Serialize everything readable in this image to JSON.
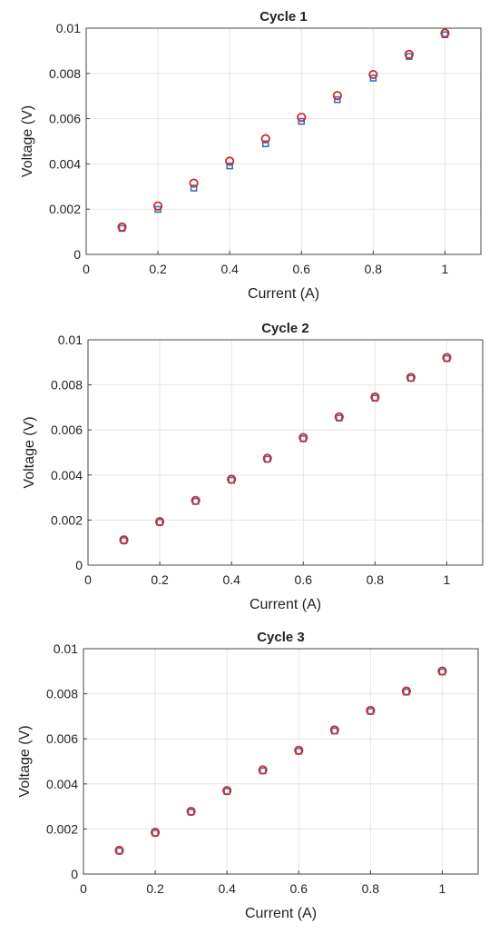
{
  "colors": {
    "marker_red": "#d42a2a",
    "marker_blue": "#2f74c0",
    "grid": "#e6e6e6",
    "axes": "#444444",
    "background": "#ffffff"
  },
  "chart_data": [
    {
      "type": "scatter",
      "title": "Cycle 1",
      "xlabel": "Current (A)",
      "ylabel": "Voltage (V)",
      "xlim": [
        0,
        1.1
      ],
      "ylim": [
        0,
        0.01
      ],
      "xticks": [
        "0",
        "0.2",
        "0.4",
        "0.6",
        "0.8",
        "1"
      ],
      "yticks": [
        "0",
        "0.002",
        "0.004",
        "0.006",
        "0.008",
        "0.01"
      ],
      "grid": true,
      "x": [
        0.1,
        0.2,
        0.3,
        0.4,
        0.5,
        0.6,
        0.7,
        0.8,
        0.9,
        1.0
      ],
      "series": [
        {
          "marker": "circle",
          "color": "#d42a2a",
          "values": [
            0.00121,
            0.00214,
            0.00315,
            0.00412,
            0.00511,
            0.00606,
            0.00702,
            0.00795,
            0.00884,
            0.00978
          ]
        },
        {
          "marker": "square",
          "color": "#2f74c0",
          "values": [
            0.00115,
            0.00199,
            0.00293,
            0.00391,
            0.00489,
            0.00588,
            0.00684,
            0.00779,
            0.00875,
            0.00971
          ]
        }
      ]
    },
    {
      "type": "scatter",
      "title": "Cycle 2",
      "xlabel": "Current (A)",
      "ylabel": "Voltage (V)",
      "xlim": [
        0,
        1.1
      ],
      "ylim": [
        0,
        0.01
      ],
      "xticks": [
        "0",
        "0.2",
        "0.4",
        "0.6",
        "0.8",
        "1"
      ],
      "yticks": [
        "0",
        "0.002",
        "0.004",
        "0.006",
        "0.008",
        "0.01"
      ],
      "grid": true,
      "x": [
        0.1,
        0.2,
        0.3,
        0.4,
        0.5,
        0.6,
        0.7,
        0.8,
        0.9,
        1.0
      ],
      "series": [
        {
          "marker": "circle",
          "color": "#d42a2a",
          "values": [
            0.00112,
            0.00193,
            0.00287,
            0.00381,
            0.00474,
            0.00566,
            0.00658,
            0.00746,
            0.00833,
            0.00921
          ]
        },
        {
          "marker": "square",
          "color": "#2f74c0",
          "values": [
            0.00109,
            0.0019,
            0.00283,
            0.00377,
            0.0047,
            0.00561,
            0.00653,
            0.00741,
            0.00829,
            0.00917
          ]
        }
      ]
    },
    {
      "type": "scatter",
      "title": "Cycle 3",
      "xlabel": "Current (A)",
      "ylabel": "Voltage (V)",
      "xlim": [
        0,
        1.1
      ],
      "ylim": [
        0,
        0.01
      ],
      "xticks": [
        "0",
        "0.2",
        "0.4",
        "0.6",
        "0.8",
        "1"
      ],
      "yticks": [
        "0",
        "0.002",
        "0.004",
        "0.006",
        "0.008",
        "0.01"
      ],
      "grid": true,
      "x": [
        0.1,
        0.2,
        0.3,
        0.4,
        0.5,
        0.6,
        0.7,
        0.8,
        0.9,
        1.0
      ],
      "series": [
        {
          "marker": "circle",
          "color": "#d42a2a",
          "values": [
            0.00105,
            0.00185,
            0.00278,
            0.0037,
            0.00462,
            0.00549,
            0.00639,
            0.00726,
            0.00812,
            0.00901
          ]
        },
        {
          "marker": "square",
          "color": "#2f74c0",
          "values": [
            0.00103,
            0.00182,
            0.00275,
            0.00367,
            0.00458,
            0.00545,
            0.00635,
            0.00722,
            0.00808,
            0.00897
          ]
        }
      ]
    }
  ]
}
